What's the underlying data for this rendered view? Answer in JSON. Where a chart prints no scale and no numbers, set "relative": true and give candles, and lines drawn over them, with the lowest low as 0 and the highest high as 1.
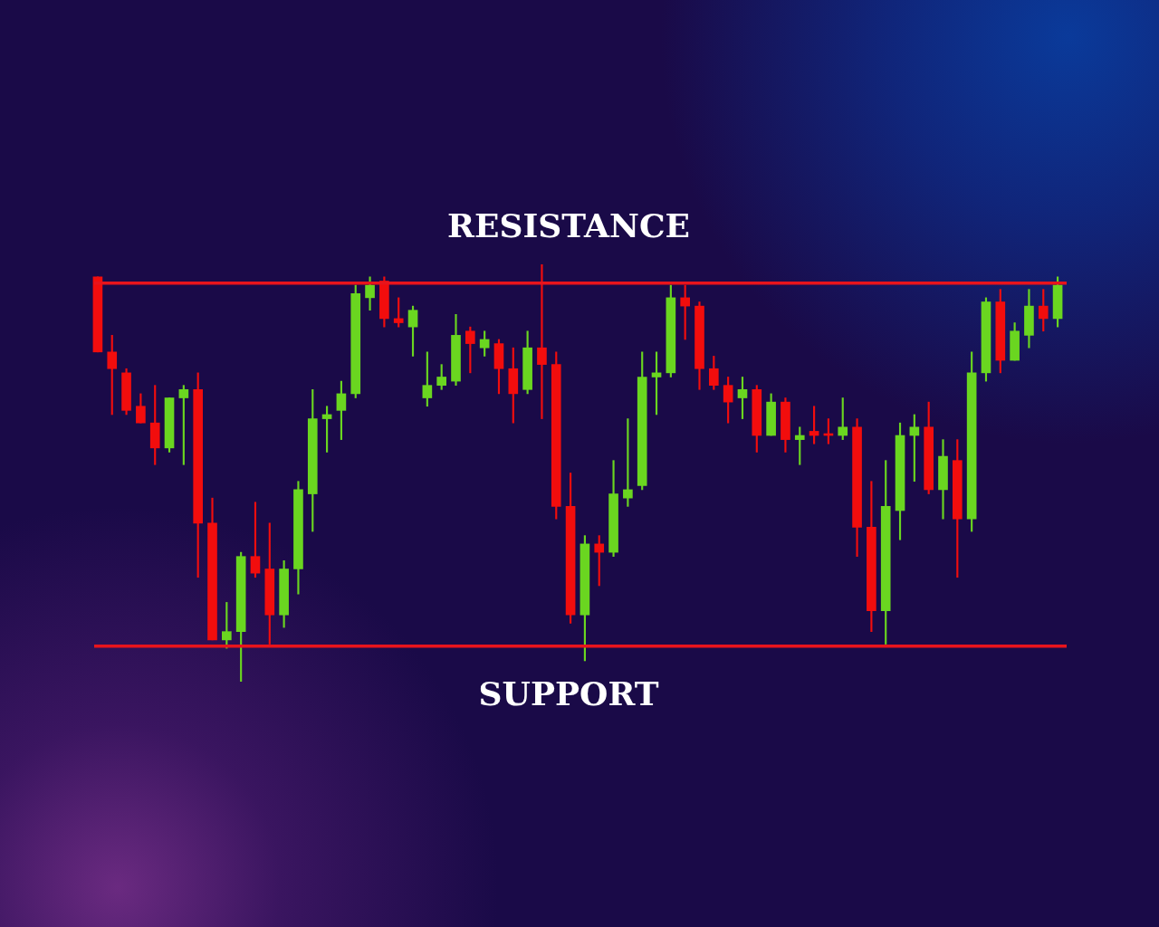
{
  "chart_data": {
    "type": "candlestick",
    "relative": true,
    "categories": [
      null,
      null,
      null,
      null,
      null,
      null,
      null,
      null,
      null,
      null,
      null,
      null,
      null,
      null,
      null,
      null,
      null,
      null,
      null,
      null,
      null,
      null,
      null,
      null,
      null,
      null,
      null,
      null,
      null,
      null,
      null,
      null,
      null,
      null,
      null,
      null,
      null,
      null,
      null,
      null,
      null,
      null,
      null,
      null,
      null,
      null,
      null,
      null,
      null,
      null,
      null,
      null,
      null,
      null,
      null,
      null,
      null,
      null,
      null,
      null,
      null,
      null,
      null,
      null,
      null,
      null,
      null,
      null
    ],
    "ohlc": [
      [
        0.97,
        0.97,
        0.79,
        0.79
      ],
      [
        0.79,
        0.83,
        0.64,
        0.75
      ],
      [
        0.74,
        0.75,
        0.64,
        0.65
      ],
      [
        0.66,
        0.69,
        0.62,
        0.62
      ],
      [
        0.62,
        0.71,
        0.52,
        0.56
      ],
      [
        0.56,
        0.68,
        0.55,
        0.68
      ],
      [
        0.68,
        0.71,
        0.52,
        0.7
      ],
      [
        0.7,
        0.74,
        0.25,
        0.38
      ],
      [
        0.38,
        0.44,
        0.1,
        0.1
      ],
      [
        0.1,
        0.19,
        0.08,
        0.12
      ],
      [
        0.12,
        0.31,
        0,
        0.3
      ],
      [
        0.3,
        0.43,
        0.25,
        0.26
      ],
      [
        0.27,
        0.38,
        0.09,
        0.16
      ],
      [
        0.16,
        0.29,
        0.13,
        0.27
      ],
      [
        0.27,
        0.48,
        0.21,
        0.46
      ],
      [
        0.45,
        0.7,
        0.36,
        0.63
      ],
      [
        0.63,
        0.66,
        0.55,
        0.64
      ],
      [
        0.65,
        0.72,
        0.58,
        0.69
      ],
      [
        0.69,
        0.95,
        0.68,
        0.93
      ],
      [
        0.92,
        0.97,
        0.89,
        0.95
      ],
      [
        0.96,
        0.97,
        0.85,
        0.87
      ],
      [
        0.87,
        0.92,
        0.85,
        0.86
      ],
      [
        0.85,
        0.9,
        0.78,
        0.89
      ],
      [
        0.68,
        0.79,
        0.66,
        0.71
      ],
      [
        0.71,
        0.76,
        0.7,
        0.73
      ],
      [
        0.72,
        0.88,
        0.71,
        0.83
      ],
      [
        0.84,
        0.85,
        0.74,
        0.81
      ],
      [
        0.8,
        0.84,
        0.78,
        0.82
      ],
      [
        0.81,
        0.82,
        0.69,
        0.75
      ],
      [
        0.75,
        0.8,
        0.62,
        0.69
      ],
      [
        0.7,
        0.84,
        0.69,
        0.8
      ],
      [
        0.8,
        1,
        0.63,
        0.76
      ],
      [
        0.76,
        0.79,
        0.39,
        0.42
      ],
      [
        0.42,
        0.5,
        0.14,
        0.16
      ],
      [
        0.16,
        0.35,
        0.05,
        0.33
      ],
      [
        0.33,
        0.35,
        0.23,
        0.31
      ],
      [
        0.31,
        0.53,
        0.3,
        0.45
      ],
      [
        0.44,
        0.63,
        0.42,
        0.46
      ],
      [
        0.47,
        0.79,
        0.46,
        0.73
      ],
      [
        0.73,
        0.79,
        0.64,
        0.74
      ],
      [
        0.74,
        0.95,
        0.73,
        0.92
      ],
      [
        0.92,
        0.95,
        0.82,
        0.9
      ],
      [
        0.9,
        0.91,
        0.7,
        0.75
      ],
      [
        0.75,
        0.78,
        0.7,
        0.71
      ],
      [
        0.71,
        0.73,
        0.62,
        0.67
      ],
      [
        0.68,
        0.73,
        0.63,
        0.7
      ],
      [
        0.7,
        0.71,
        0.55,
        0.59
      ],
      [
        0.59,
        0.69,
        0.59,
        0.67
      ],
      [
        0.67,
        0.68,
        0.55,
        0.58
      ],
      [
        0.58,
        0.61,
        0.52,
        0.59
      ],
      [
        0.6,
        0.66,
        0.57,
        0.59
      ],
      [
        0.593,
        0.63,
        0.57,
        0.59
      ],
      [
        0.59,
        0.68,
        0.58,
        0.61
      ],
      [
        0.61,
        0.63,
        0.3,
        0.37
      ],
      [
        0.37,
        0.48,
        0.12,
        0.17
      ],
      [
        0.17,
        0.53,
        0.09,
        0.42
      ],
      [
        0.41,
        0.62,
        0.34,
        0.59
      ],
      [
        0.59,
        0.64,
        0.48,
        0.61
      ],
      [
        0.61,
        0.67,
        0.45,
        0.46
      ],
      [
        0.46,
        0.58,
        0.39,
        0.54
      ],
      [
        0.53,
        0.58,
        0.25,
        0.39
      ],
      [
        0.39,
        0.79,
        0.36,
        0.74
      ],
      [
        0.74,
        0.92,
        0.72,
        0.91
      ],
      [
        0.91,
        0.94,
        0.74,
        0.77
      ],
      [
        0.77,
        0.86,
        0.77,
        0.84
      ],
      [
        0.83,
        0.94,
        0.8,
        0.9
      ],
      [
        0.9,
        0.94,
        0.84,
        0.87
      ],
      [
        0.87,
        0.97,
        0.85,
        0.95
      ]
    ],
    "colors": [
      "#f20d0d",
      "#f20d0d",
      "#f20d0d",
      "#f20d0d",
      "#f20d0d",
      "#6ad620",
      "#6ad620",
      "#f20d0d",
      "#f20d0d",
      "#6ad620",
      "#6ad620",
      "#f20d0d",
      "#f20d0d",
      "#6ad620",
      "#6ad620",
      "#6ad620",
      "#6ad620",
      "#6ad620",
      "#6ad620",
      "#6ad620",
      "#f20d0d",
      "#f20d0d",
      "#6ad620",
      "#6ad620",
      "#6ad620",
      "#6ad620",
      "#f20d0d",
      "#6ad620",
      "#f20d0d",
      "#f20d0d",
      "#6ad620",
      "#f20d0d",
      "#f20d0d",
      "#f20d0d",
      "#6ad620",
      "#f20d0d",
      "#6ad620",
      "#6ad620",
      "#6ad620",
      "#6ad620",
      "#6ad620",
      "#f20d0d",
      "#f20d0d",
      "#f20d0d",
      "#f20d0d",
      "#6ad620",
      "#f20d0d",
      "#6ad620",
      "#f20d0d",
      "#6ad620",
      "#f20d0d",
      "#f20d0d",
      "#6ad620",
      "#f20d0d",
      "#f20d0d",
      "#6ad620",
      "#6ad620",
      "#6ad620",
      "#f20d0d",
      "#6ad620",
      "#f20d0d",
      "#6ad620",
      "#6ad620",
      "#f20d0d",
      "#6ad620",
      "#6ad620",
      "#f20d0d",
      "#6ad620"
    ],
    "ref_lines": [
      {
        "axis": "y",
        "value": 0.955,
        "label": "RESISTANCE",
        "color": "#e8141c"
      },
      {
        "axis": "y",
        "value": 0.085,
        "label": "SUPPORT",
        "color": "#e8141c"
      }
    ]
  }
}
